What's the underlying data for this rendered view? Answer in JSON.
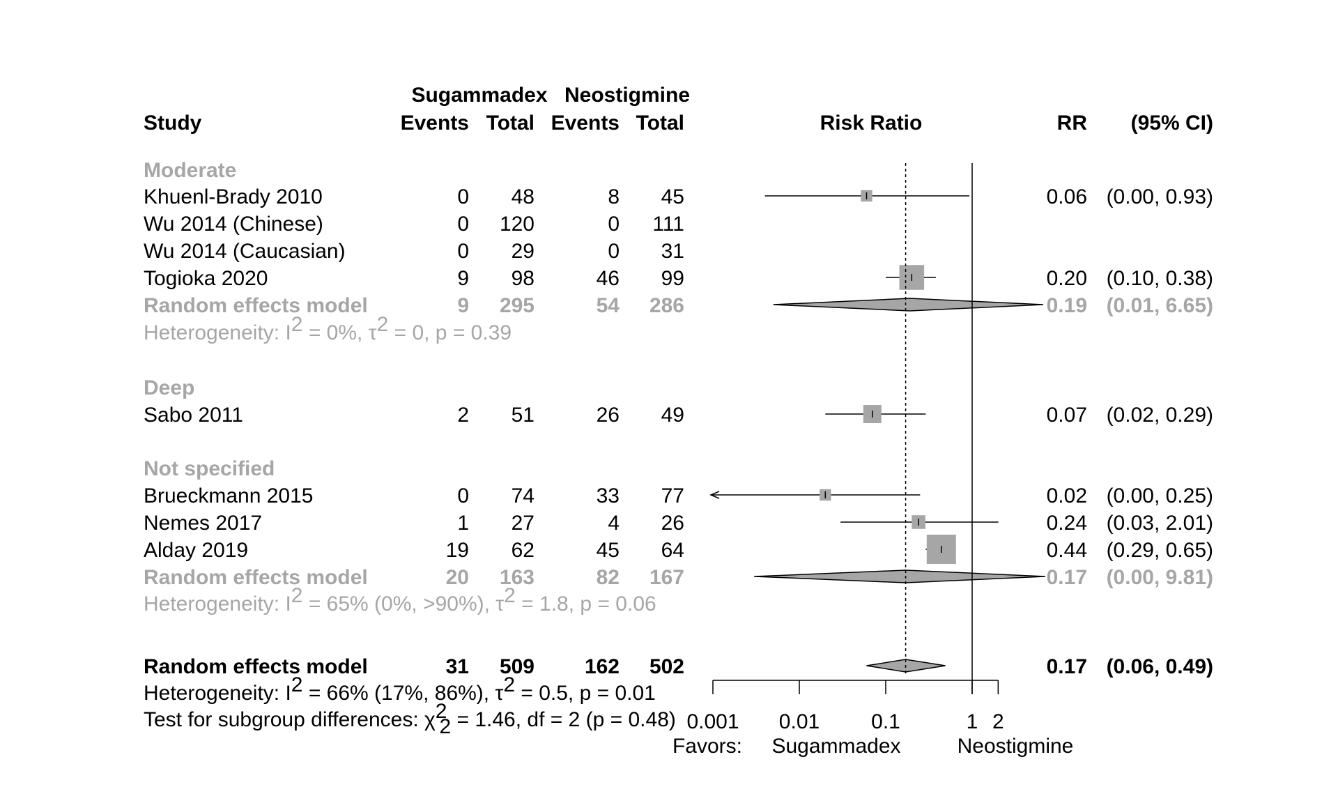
{
  "header": {
    "study": "Study",
    "sug_group": "Sugammadex",
    "neo_group": "Neostigmine",
    "events": "Events",
    "total": "Total",
    "risk_ratio": "Risk Ratio",
    "rr": "RR",
    "ci": "(95% CI)"
  },
  "labels": {
    "favors": "Favors:",
    "favors_left": "Sugammadex",
    "favors_right": "Neostigmine"
  },
  "overall": {
    "label": "Random effects model",
    "sug_events": "31",
    "sug_total": "509",
    "neo_events": "162",
    "neo_total": "502",
    "rr": "0.17",
    "ci": "(0.06, 0.49)",
    "est": 0.17,
    "lo": 0.06,
    "hi": 0.49,
    "het_prefix": "Heterogeneity: ",
    "het_i": "I",
    "het_mid": " = 66% (17%, 86%), τ",
    "het_mid2": " = 0.5, ",
    "het_p": "p",
    "het_end": " = 0.01",
    "subgroup_prefix": "Test for subgroup differences: χ",
    "subgroup_mid": " = 1.46, df = 2 (",
    "subgroup_p": "p",
    "subgroup_end": " = 0.48)"
  },
  "chart_data": {
    "type": "forest",
    "x_scale": "log",
    "xlim": [
      0.001,
      2
    ],
    "ticks": [
      {
        "value": 0.001,
        "label": "0.001"
      },
      {
        "value": 0.01,
        "label": "0.01"
      },
      {
        "value": 0.1,
        "label": "0.1"
      },
      {
        "value": 1,
        "label": "1"
      },
      {
        "value": 2,
        "label": "2"
      }
    ],
    "null_value": 1,
    "pooled_value": 0.17,
    "groups": [
      {
        "name": "Moderate",
        "studies": [
          {
            "study": "Khuenl-Brady 2010",
            "sug_events": "0",
            "sug_total": "48",
            "neo_events": "8",
            "neo_total": "45",
            "rr": "0.06",
            "ci": "(0.00, 0.93)",
            "est": 0.06,
            "lo": 0.004,
            "hi": 0.93,
            "weight": 1
          },
          {
            "study": "Wu 2014 (Chinese)",
            "sug_events": "0",
            "sug_total": "120",
            "neo_events": "0",
            "neo_total": "111",
            "rr": "",
            "ci": ""
          },
          {
            "study": "Wu 2014 (Caucasian)",
            "sug_events": "0",
            "sug_total": "29",
            "neo_events": "0",
            "neo_total": "31",
            "rr": "",
            "ci": ""
          },
          {
            "study": "Togioka 2020",
            "sug_events": "9",
            "sug_total": "98",
            "neo_events": "46",
            "neo_total": "99",
            "rr": "0.20",
            "ci": "(0.10, 0.38)",
            "est": 0.2,
            "lo": 0.1,
            "hi": 0.38,
            "weight": 4
          }
        ],
        "model": {
          "label": "Random effects model",
          "sug_events": "9",
          "sug_total": "295",
          "neo_events": "54",
          "neo_total": "286",
          "rr": "0.19",
          "ci": "(0.01, 6.65)",
          "est": 0.19,
          "lo": 0.005,
          "hi": 6.65
        },
        "het": {
          "prefix": "Heterogeneity: ",
          "i": "I",
          "mid": " = 0%, τ",
          "mid2": " = 0, ",
          "p": "p",
          "end": " = 0.39"
        }
      },
      {
        "name": "Deep",
        "studies": [
          {
            "study": "Sabo 2011",
            "sug_events": "2",
            "sug_total": "51",
            "neo_events": "26",
            "neo_total": "49",
            "rr": "0.07",
            "ci": "(0.02, 0.29)",
            "est": 0.07,
            "lo": 0.02,
            "hi": 0.29,
            "weight": 2.5
          }
        ]
      },
      {
        "name": "Not specified",
        "studies": [
          {
            "study": "Brueckmann 2015",
            "sug_events": "0",
            "sug_total": "74",
            "neo_events": "33",
            "neo_total": "77",
            "rr": "0.02",
            "ci": "(0.00, 0.25)",
            "est": 0.02,
            "lo": 0.0005,
            "hi": 0.25,
            "weight": 1,
            "arrow_left": true
          },
          {
            "study": "Nemes 2017",
            "sug_events": "1",
            "sug_total": "27",
            "neo_events": "4",
            "neo_total": "26",
            "rr": "0.24",
            "ci": "(0.03, 2.01)",
            "est": 0.24,
            "lo": 0.03,
            "hi": 2.01,
            "weight": 1.5
          },
          {
            "study": "Alday 2019",
            "sug_events": "19",
            "sug_total": "62",
            "neo_events": "45",
            "neo_total": "64",
            "rr": "0.44",
            "ci": "(0.29, 0.65)",
            "est": 0.44,
            "lo": 0.29,
            "hi": 0.65,
            "weight": 5
          }
        ],
        "model": {
          "label": "Random effects model",
          "sug_events": "20",
          "sug_total": "163",
          "neo_events": "82",
          "neo_total": "167",
          "rr": "0.17",
          "ci": "(0.00, 9.81)",
          "est": 0.17,
          "lo": 0.003,
          "hi": 9.81
        },
        "het": {
          "prefix": "Heterogeneity: ",
          "i": "I",
          "mid": " = 65% (0%, >90%), τ",
          "mid2": " = 1.8, ",
          "p": "p",
          "end": " = 0.06"
        }
      }
    ]
  }
}
